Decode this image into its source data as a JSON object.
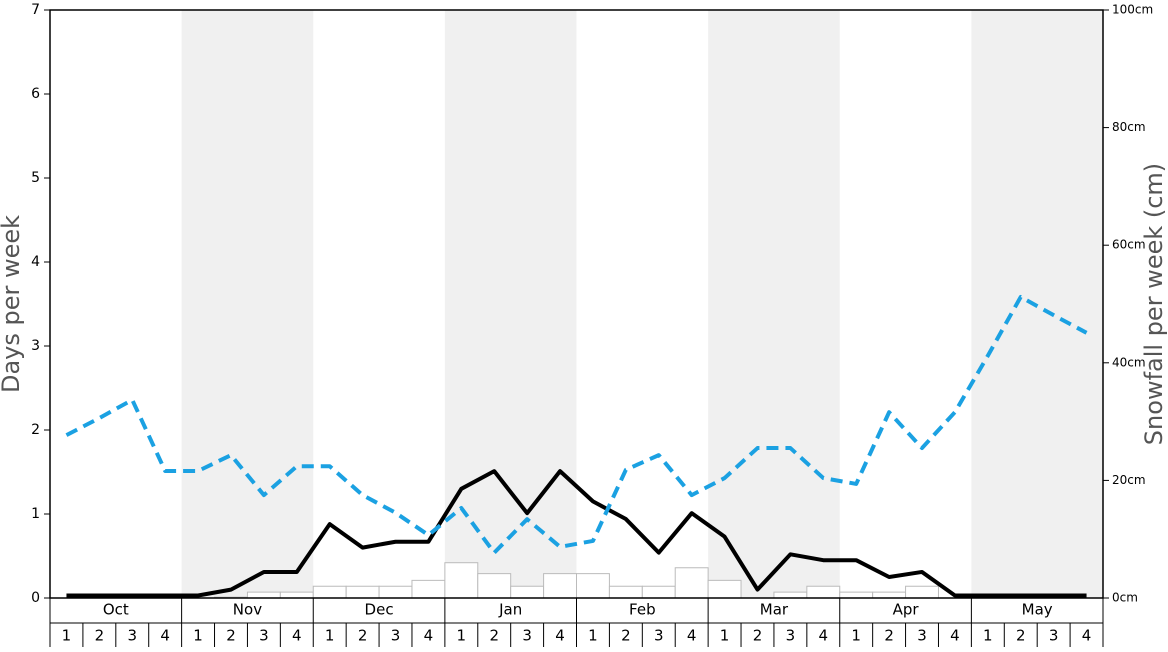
{
  "chart_data": {
    "type": "combo",
    "months": [
      "Oct",
      "Nov",
      "Dec",
      "Jan",
      "Feb",
      "Mar",
      "Apr",
      "May"
    ],
    "weeks": [
      "1",
      "2",
      "3",
      "4"
    ],
    "ylabel": "Days per week",
    "y2label": "Snowfall per week (cm)",
    "ylim": [
      0,
      7
    ],
    "yticks": [
      0,
      1,
      2,
      3,
      4,
      5,
      6,
      7
    ],
    "y2lim": [
      0,
      100
    ],
    "y2ticks": [
      {
        "value": 0,
        "label": "0cm"
      },
      {
        "value": 20,
        "label": "20cm"
      },
      {
        "value": 40,
        "label": "40cm"
      },
      {
        "value": 60,
        "label": "60cm"
      },
      {
        "value": 80,
        "label": "80cm"
      },
      {
        "value": 100,
        "label": "100cm"
      }
    ],
    "series": [
      {
        "type": "bar",
        "color": "#ffffff",
        "values": [
          0,
          0,
          0,
          0,
          0,
          0.01,
          0.07,
          0.07,
          0.14,
          0.14,
          0.14,
          0.21,
          0.42,
          0.29,
          0.14,
          0.29,
          0.29,
          0.14,
          0.14,
          0.36,
          0.21,
          0,
          0.07,
          0.14,
          0.07,
          0.07,
          0.14,
          0,
          0,
          0,
          0,
          0
        ]
      },
      {
        "type": "line",
        "color": "#000000",
        "values": [
          0.03,
          0.03,
          0.03,
          0.03,
          0.03,
          0.1,
          0.31,
          0.31,
          0.88,
          0.6,
          0.67,
          0.67,
          1.3,
          1.51,
          1.01,
          1.51,
          1.15,
          0.94,
          0.54,
          1.01,
          0.73,
          0.1,
          0.52,
          0.45,
          0.45,
          0.25,
          0.31,
          0.03,
          0.03,
          0.03,
          0.03,
          0.03
        ]
      },
      {
        "type": "line",
        "dashed": true,
        "axis": "y2",
        "color": "#1ba1e2",
        "values": [
          27.7,
          30.6,
          33.7,
          21.6,
          21.6,
          24.3,
          17.5,
          22.4,
          22.4,
          17.5,
          14.5,
          10.7,
          15.3,
          7.7,
          13.4,
          8.7,
          9.7,
          21.8,
          24.3,
          17.5,
          20.4,
          25.5,
          25.5,
          20.4,
          19.4,
          31.6,
          25.5,
          31.6,
          41.2,
          51.2,
          48.1,
          45.1
        ]
      }
    ]
  }
}
